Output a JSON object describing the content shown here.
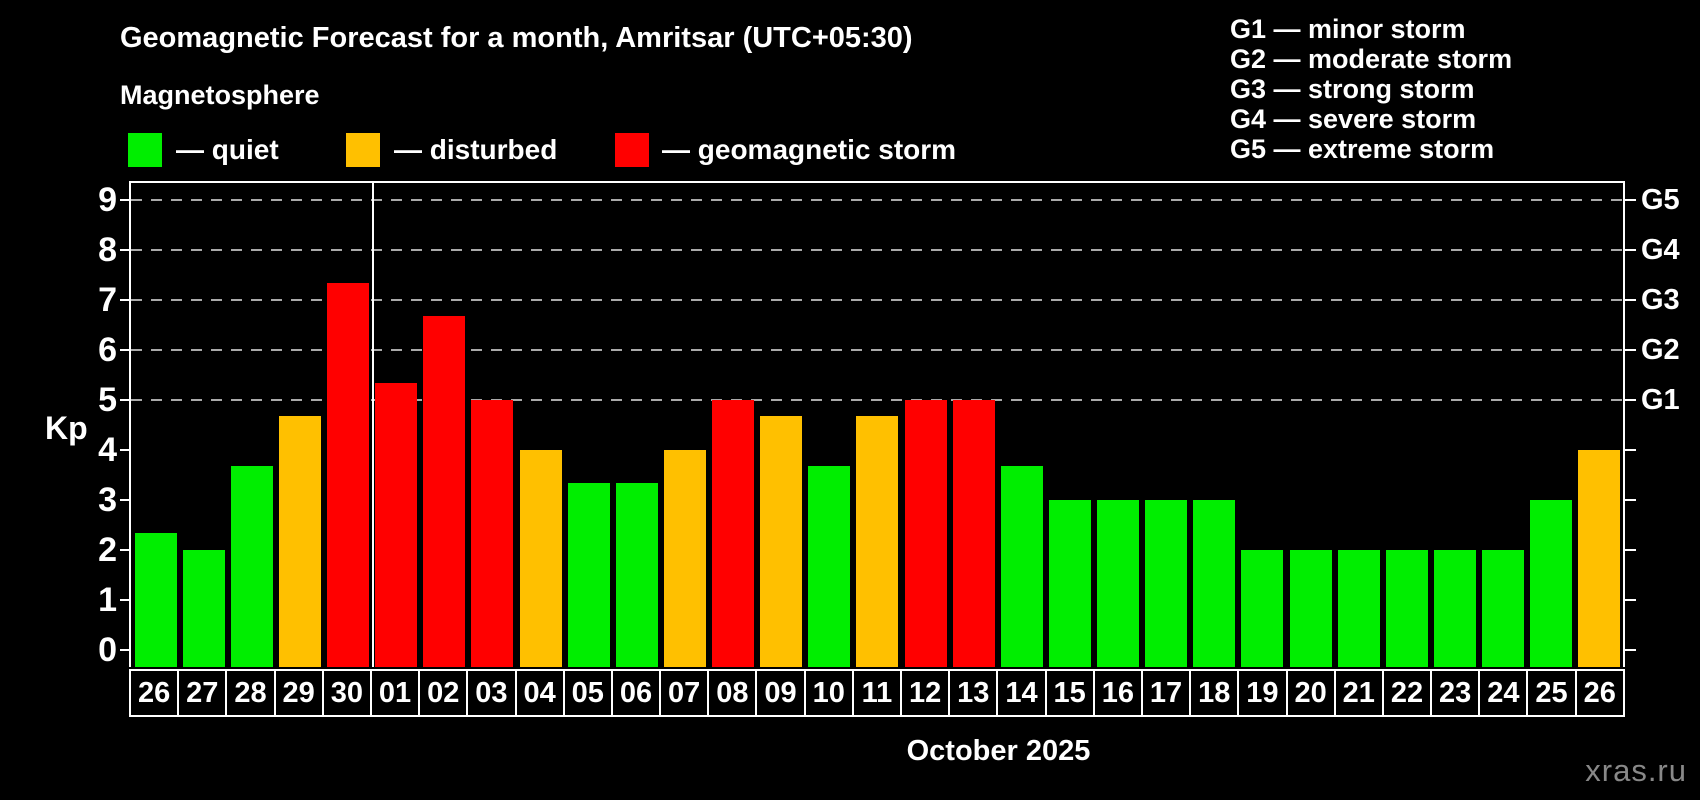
{
  "header": {
    "title": "Geomagnetic Forecast for a month, Amritsar (UTC+05:30)",
    "subtitle": "Magnetosphere"
  },
  "legend": {
    "items": [
      {
        "label": "— quiet",
        "state": "quiet",
        "color": "#00ee00"
      },
      {
        "label": "— disturbed",
        "state": "disturbed",
        "color": "#ffc000"
      },
      {
        "label": "— geomagnetic storm",
        "state": "storm",
        "color": "#ff0000"
      }
    ]
  },
  "g_legend": {
    "items": [
      "G1 — minor storm",
      "G2 — moderate storm",
      "G3 — strong storm",
      "G4 — severe storm",
      "G5 — extreme storm"
    ]
  },
  "y_axis": {
    "label": "Kp",
    "ticks": [
      0,
      1,
      2,
      3,
      4,
      5,
      6,
      7,
      8,
      9
    ]
  },
  "x_axis": {
    "month_label": "October 2025"
  },
  "watermark": "xras.ru",
  "chart_data": {
    "type": "bar",
    "title": "Geomagnetic Forecast for a month, Amritsar (UTC+05:30)",
    "xlabel": "October 2025",
    "ylabel": "Kp",
    "ylim": [
      0,
      9
    ],
    "grid_on": true,
    "gridlines": [
      5,
      6,
      7,
      8,
      9
    ],
    "legend_position": "top-left",
    "month_separator_after_index": 4,
    "state_colors": {
      "quiet": "#00ee00",
      "disturbed": "#ffc000",
      "storm": "#ff0000"
    },
    "right_axis_labels": [
      {
        "label": "G1",
        "kp": 5
      },
      {
        "label": "G2",
        "kp": 6
      },
      {
        "label": "G3",
        "kp": 7
      },
      {
        "label": "G4",
        "kp": 8
      },
      {
        "label": "G5",
        "kp": 9
      }
    ],
    "bars": [
      {
        "date": "26",
        "value": 2.33,
        "state": "quiet"
      },
      {
        "date": "27",
        "value": 2.0,
        "state": "quiet"
      },
      {
        "date": "28",
        "value": 3.67,
        "state": "quiet"
      },
      {
        "date": "29",
        "value": 4.67,
        "state": "disturbed"
      },
      {
        "date": "30",
        "value": 7.33,
        "state": "storm"
      },
      {
        "date": "01",
        "value": 5.33,
        "state": "storm"
      },
      {
        "date": "02",
        "value": 6.67,
        "state": "storm"
      },
      {
        "date": "03",
        "value": 5.0,
        "state": "storm"
      },
      {
        "date": "04",
        "value": 4.0,
        "state": "disturbed"
      },
      {
        "date": "05",
        "value": 3.33,
        "state": "quiet"
      },
      {
        "date": "06",
        "value": 3.33,
        "state": "quiet"
      },
      {
        "date": "07",
        "value": 4.0,
        "state": "disturbed"
      },
      {
        "date": "08",
        "value": 5.0,
        "state": "storm"
      },
      {
        "date": "09",
        "value": 4.67,
        "state": "disturbed"
      },
      {
        "date": "10",
        "value": 3.67,
        "state": "quiet"
      },
      {
        "date": "11",
        "value": 4.67,
        "state": "disturbed"
      },
      {
        "date": "12",
        "value": 5.0,
        "state": "storm"
      },
      {
        "date": "13",
        "value": 5.0,
        "state": "storm"
      },
      {
        "date": "14",
        "value": 3.67,
        "state": "quiet"
      },
      {
        "date": "15",
        "value": 3.0,
        "state": "quiet"
      },
      {
        "date": "16",
        "value": 3.0,
        "state": "quiet"
      },
      {
        "date": "17",
        "value": 3.0,
        "state": "quiet"
      },
      {
        "date": "18",
        "value": 3.0,
        "state": "quiet"
      },
      {
        "date": "19",
        "value": 2.0,
        "state": "quiet"
      },
      {
        "date": "20",
        "value": 2.0,
        "state": "quiet"
      },
      {
        "date": "21",
        "value": 2.0,
        "state": "quiet"
      },
      {
        "date": "22",
        "value": 2.0,
        "state": "quiet"
      },
      {
        "date": "23",
        "value": 2.0,
        "state": "quiet"
      },
      {
        "date": "24",
        "value": 2.0,
        "state": "quiet"
      },
      {
        "date": "25",
        "value": 3.0,
        "state": "quiet"
      },
      {
        "date": "26",
        "value": 4.0,
        "state": "disturbed"
      }
    ]
  }
}
